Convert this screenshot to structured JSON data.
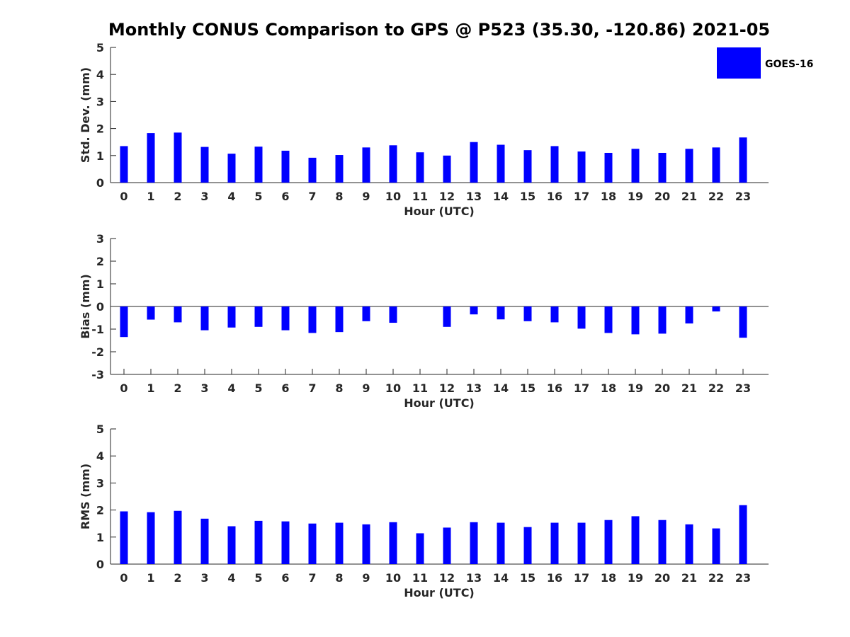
{
  "title": "Monthly CONUS Comparison to GPS @ P523 (35.30, -120.86) 2021-05",
  "legend": {
    "label": "GOES-16",
    "color": "#0000ff",
    "placement": "top-right"
  },
  "chart_data": [
    {
      "type": "bar",
      "title": "Monthly CONUS Comparison to GPS @ P523 (35.30, -120.86) 2021-05",
      "xlabel": "Hour (UTC)",
      "ylabel": "Std. Dev. (mm)",
      "categories": [
        "0",
        "1",
        "2",
        "3",
        "4",
        "5",
        "6",
        "7",
        "8",
        "9",
        "10",
        "11",
        "12",
        "13",
        "14",
        "15",
        "16",
        "17",
        "18",
        "19",
        "20",
        "21",
        "22",
        "23"
      ],
      "ylim": [
        0,
        5
      ],
      "yticks": [
        0,
        1,
        2,
        3,
        4,
        5
      ],
      "grid": false,
      "series": [
        {
          "name": "GOES-16",
          "color": "#0000ff",
          "values": [
            1.35,
            1.83,
            1.85,
            1.32,
            1.07,
            1.33,
            1.18,
            0.92,
            1.02,
            1.3,
            1.38,
            1.12,
            1.0,
            1.5,
            1.4,
            1.2,
            1.35,
            1.15,
            1.1,
            1.25,
            1.1,
            1.25,
            1.3,
            1.67
          ]
        }
      ]
    },
    {
      "type": "bar",
      "xlabel": "Hour (UTC)",
      "ylabel": "Bias (mm)",
      "categories": [
        "0",
        "1",
        "2",
        "3",
        "4",
        "5",
        "6",
        "7",
        "8",
        "9",
        "10",
        "11",
        "12",
        "13",
        "14",
        "15",
        "16",
        "17",
        "18",
        "19",
        "20",
        "21",
        "22",
        "23"
      ],
      "ylim": [
        -3,
        3
      ],
      "yticks": [
        -3,
        -2,
        -1,
        0,
        1,
        2,
        3
      ],
      "grid": false,
      "series": [
        {
          "name": "GOES-16",
          "color": "#0000ff",
          "values": [
            -1.35,
            -0.58,
            -0.7,
            -1.05,
            -0.93,
            -0.9,
            -1.05,
            -1.17,
            -1.13,
            -0.65,
            -0.72,
            0.0,
            -0.9,
            -0.35,
            -0.57,
            -0.65,
            -0.7,
            -0.98,
            -1.17,
            -1.23,
            -1.2,
            -0.75,
            -0.22,
            -1.38
          ]
        }
      ]
    },
    {
      "type": "bar",
      "xlabel": "Hour (UTC)",
      "ylabel": "RMS (mm)",
      "categories": [
        "0",
        "1",
        "2",
        "3",
        "4",
        "5",
        "6",
        "7",
        "8",
        "9",
        "10",
        "11",
        "12",
        "13",
        "14",
        "15",
        "16",
        "17",
        "18",
        "19",
        "20",
        "21",
        "22",
        "23"
      ],
      "ylim": [
        0,
        5
      ],
      "yticks": [
        0,
        1,
        2,
        3,
        4,
        5
      ],
      "grid": false,
      "series": [
        {
          "name": "GOES-16",
          "color": "#0000ff",
          "values": [
            1.95,
            1.92,
            1.97,
            1.68,
            1.4,
            1.6,
            1.58,
            1.5,
            1.53,
            1.47,
            1.55,
            1.14,
            1.35,
            1.55,
            1.53,
            1.37,
            1.53,
            1.53,
            1.63,
            1.77,
            1.63,
            1.47,
            1.32,
            2.18
          ]
        }
      ]
    }
  ]
}
